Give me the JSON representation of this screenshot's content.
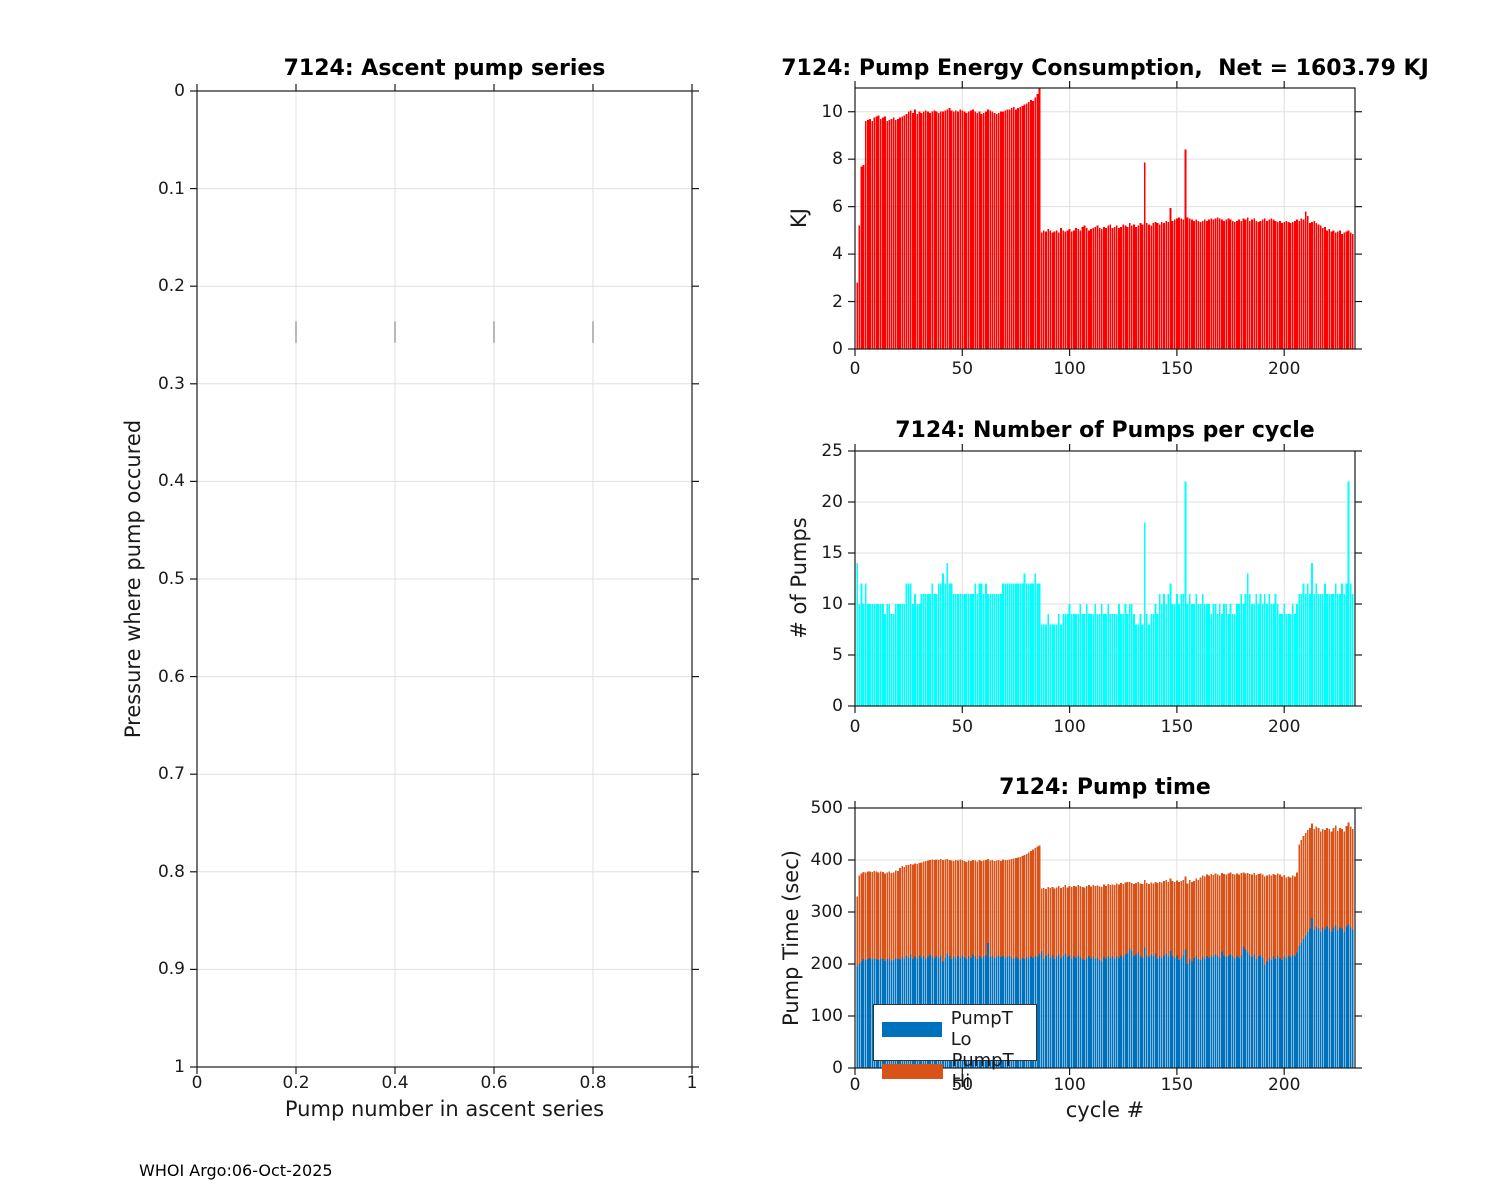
{
  "page": {
    "footer": "WHOI Argo:06-Oct-2025"
  },
  "colors": {
    "energy_bar": "#ff0000",
    "pumps_bar": "#00ffff",
    "pump_lo": "#0072bd",
    "pump_hi": "#d95319",
    "grid": "#e0e0e0",
    "axis": "#1a1a1a"
  },
  "chart_data": [
    {
      "key": "ascent",
      "type": "bar",
      "title": "7124: Ascent pump series",
      "xlabel": "Pump number in ascent series",
      "ylabel": "Pressure where pump occured",
      "xlim": [
        0,
        1
      ],
      "ylim": [
        0,
        1
      ],
      "y_reversed": true,
      "grid": true,
      "xticks": [
        "0",
        "0.2",
        "0.4",
        "0.6",
        "0.8",
        "1"
      ],
      "yticks": [
        "0",
        "0.1",
        "0.2",
        "0.3",
        "0.4",
        "0.5",
        "0.6",
        "0.7",
        "0.8",
        "0.9",
        "1"
      ],
      "bar_color": "#ff0000",
      "values": [],
      "note": "axes are empty - no data plotted"
    },
    {
      "key": "energy",
      "type": "bar",
      "title": "7124: Pump Energy Consumption,  Net = 1603.79 KJ",
      "xlabel": "",
      "ylabel": "KJ",
      "xlim": [
        0,
        233
      ],
      "ylim": [
        0,
        11
      ],
      "grid": true,
      "xticks": [
        "0",
        "50",
        "100",
        "150",
        "200"
      ],
      "yticks": [
        "0",
        "2",
        "4",
        "6",
        "8",
        "10"
      ],
      "bar_color": "#ff0000",
      "values": [
        2.8,
        5.2,
        7.7,
        7.75,
        9.6,
        9.65,
        9.7,
        9.6,
        9.75,
        9.8,
        9.85,
        9.7,
        9.75,
        9.8,
        9.6,
        9.65,
        9.7,
        9.75,
        9.65,
        9.7,
        9.75,
        9.8,
        9.85,
        9.9,
        10,
        10.05,
        9.95,
        10.1,
        9.9,
        10,
        9.95,
        10,
        10.05,
        10,
        9.95,
        10,
        10.05,
        10,
        9.95,
        10,
        10,
        10.05,
        10.1,
        10.15,
        10.05,
        10,
        10.05,
        10,
        10.1,
        10.05,
        10,
        9.95,
        10,
        10.05,
        10.1,
        10,
        9.95,
        10,
        9.9,
        9.95,
        10,
        10.1,
        10.05,
        10,
        9.95,
        9.9,
        9.95,
        10,
        10,
        10.05,
        10.1,
        10.1,
        10.15,
        10.2,
        10.1,
        10.15,
        10.2,
        10.25,
        10.3,
        10.35,
        10.4,
        10.5,
        10.45,
        10.6,
        10.75,
        11,
        4.9,
        5,
        4.95,
        5.05,
        5,
        4.9,
        4.95,
        5,
        4.9,
        5.1,
        5,
        4.95,
        5,
        5.05,
        4.95,
        5,
        5.1,
        5.05,
        5,
        5.15,
        5.2,
        5.1,
        5,
        5.05,
        5.1,
        5.15,
        5.2,
        5.1,
        5.05,
        5.15,
        5.1,
        5.2,
        5.25,
        5.1,
        5.15,
        5.2,
        5.1,
        5.15,
        5.25,
        5.2,
        5.15,
        5.3,
        5.2,
        5.25,
        5.15,
        5.2,
        5.3,
        5.25,
        7.85,
        5.3,
        5.25,
        5.2,
        5.3,
        5.35,
        5.3,
        5.25,
        5.35,
        5.3,
        5.4,
        5.35,
        5.95,
        5.4,
        5.45,
        5.5,
        5.55,
        5.5,
        5.45,
        8.4,
        5.55,
        5.5,
        5.45,
        5.4,
        5.45,
        5.4,
        5.35,
        5.4,
        5.45,
        5.4,
        5.45,
        5.5,
        5.45,
        5.5,
        5.55,
        5.5,
        5.45,
        5.4,
        5.45,
        5.5,
        5.45,
        5.4,
        5.35,
        5.4,
        5.45,
        5.4,
        5.5,
        5.45,
        5.55,
        5.4,
        5.45,
        5.5,
        5.4,
        5.35,
        5.4,
        5.45,
        5.5,
        5.4,
        5.45,
        5.5,
        5.45,
        5.4,
        5.35,
        5.4,
        5.3,
        5.35,
        5.4,
        5.35,
        5.3,
        5.35,
        5.4,
        5.45,
        5.4,
        5.5,
        5.45,
        5.8,
        5.6,
        5.3,
        5.35,
        5.4,
        5.3,
        5.25,
        5.2,
        5.1,
        5.15,
        5,
        5.05,
        4.95,
        5,
        4.9,
        4.95,
        5,
        4.85,
        4.9,
        4.95,
        5,
        4.9,
        4.85
      ]
    },
    {
      "key": "pumps",
      "type": "bar",
      "title": "7124: Number of Pumps per cycle",
      "xlabel": "",
      "ylabel": "# of Pumps",
      "xlim": [
        0,
        233
      ],
      "ylim": [
        0,
        25
      ],
      "grid": true,
      "xticks": [
        "0",
        "50",
        "100",
        "150",
        "200"
      ],
      "yticks": [
        "0",
        "5",
        "10",
        "15",
        "20",
        "25"
      ],
      "bar_color": "#00ffff",
      "values": [
        14,
        10,
        12,
        10,
        12,
        10,
        10,
        10,
        10,
        10,
        10,
        10,
        10,
        9,
        10,
        10,
        9,
        9,
        10,
        10,
        10,
        10,
        10,
        12,
        12,
        12,
        10,
        11,
        10,
        10,
        11,
        11,
        11,
        11,
        11,
        12,
        11,
        11,
        12,
        12,
        13,
        12,
        14,
        12,
        12,
        11,
        11,
        11,
        11,
        11,
        11,
        11,
        11,
        11,
        11,
        12,
        11,
        12,
        12,
        11,
        12,
        11,
        11,
        11,
        11,
        11,
        11,
        11,
        12,
        12,
        12,
        12,
        12,
        12,
        12,
        12,
        12,
        12,
        13,
        12,
        12,
        12,
        12,
        13,
        12,
        12,
        8,
        8,
        8,
        9,
        8,
        8,
        8,
        8,
        9,
        8,
        9,
        9,
        9,
        10,
        9,
        9,
        9,
        9,
        10,
        9,
        9,
        10,
        9,
        9,
        9,
        10,
        9,
        9,
        10,
        9,
        9,
        10,
        9,
        9,
        9,
        9,
        10,
        9,
        9,
        10,
        9,
        10,
        10,
        9,
        8,
        8,
        9,
        8,
        18,
        9,
        8,
        9,
        9,
        10,
        9,
        11,
        10,
        11,
        10,
        11,
        12,
        10,
        10,
        11,
        10,
        11,
        11,
        22,
        10,
        11,
        10,
        10,
        11,
        10,
        10,
        11,
        10,
        10,
        10,
        9,
        10,
        10,
        9,
        10,
        9,
        10,
        10,
        9,
        10,
        9,
        9,
        10,
        10,
        11,
        10,
        11,
        13,
        11,
        10,
        10,
        11,
        10,
        11,
        10,
        11,
        10,
        11,
        10,
        10,
        11,
        10,
        9,
        9,
        10,
        9,
        9,
        9,
        10,
        9,
        10,
        11,
        11,
        12,
        11,
        12,
        11,
        14,
        11,
        12,
        11,
        11,
        11,
        12,
        11,
        11,
        11,
        11,
        12,
        11,
        11,
        12,
        11,
        12,
        22,
        12,
        11
      ]
    },
    {
      "key": "pumptime",
      "type": "stacked-bar",
      "title": "7124: Pump time",
      "xlabel": "cycle #",
      "ylabel": "Pump Time (sec)",
      "xlim": [
        0,
        233
      ],
      "ylim": [
        0,
        500
      ],
      "grid": true,
      "xticks": [
        "0",
        "50",
        "100",
        "150",
        "200"
      ],
      "yticks": [
        "0",
        "100",
        "200",
        "300",
        "400",
        "500"
      ],
      "legend_position": "bottom-left",
      "series": [
        {
          "name": "PumpT Lo",
          "color": "#0072bd",
          "values": [
            195,
            200,
            205,
            210,
            208,
            210,
            212,
            209,
            211,
            210,
            208,
            212,
            210,
            206,
            210,
            211,
            207,
            208,
            212,
            210,
            209,
            213,
            210,
            215,
            212,
            218,
            210,
            214,
            211,
            216,
            212,
            215,
            210,
            213,
            217,
            214,
            211,
            215,
            212,
            216,
            205,
            212,
            220,
            215,
            210,
            214,
            211,
            215,
            212,
            216,
            213,
            210,
            215,
            212,
            218,
            214,
            210,
            215,
            211,
            214,
            216,
            240,
            213,
            215,
            212,
            214,
            216,
            213,
            215,
            212,
            214,
            215,
            212,
            210,
            213,
            211,
            208,
            212,
            210,
            213,
            211,
            214,
            212,
            215,
            213,
            218,
            225,
            210,
            215,
            220,
            212,
            216,
            210,
            214,
            218,
            212,
            215,
            220,
            213,
            216,
            210,
            214,
            212,
            216,
            213,
            210,
            208,
            212,
            215,
            211,
            214,
            210,
            212,
            208,
            205,
            213,
            210,
            215,
            212,
            214,
            210,
            215,
            212,
            216,
            213,
            218,
            220,
            230,
            225,
            215,
            218,
            222,
            215,
            212,
            232,
            216,
            213,
            218,
            215,
            220,
            210,
            215,
            212,
            216,
            220,
            213,
            225,
            215,
            212,
            216,
            208,
            212,
            216,
            228,
            200,
            210,
            205,
            212,
            215,
            210,
            208,
            214,
            210,
            215,
            212,
            216,
            213,
            218,
            215,
            212,
            224,
            216,
            213,
            215,
            218,
            214,
            211,
            215,
            212,
            216,
            233,
            228,
            222,
            216,
            213,
            218,
            210,
            214,
            216,
            212,
            198,
            205,
            212,
            208,
            214,
            210,
            216,
            212,
            208,
            215,
            212,
            216,
            213,
            218,
            215,
            222,
            235,
            240,
            248,
            255,
            262,
            268,
            288,
            265,
            272,
            268,
            262,
            270,
            266,
            272,
            268,
            262,
            270,
            275,
            264,
            270,
            268,
            262,
            272,
            276,
            270,
            266
          ]
        },
        {
          "name": "PumpT Hi",
          "color": "#d95319",
          "values": [
            135,
            170,
            169,
            167,
            168,
            168,
            166,
            168,
            168,
            168,
            168,
            166,
            167,
            168,
            166,
            167,
            168,
            168,
            168,
            169,
            176,
            175,
            177,
            175,
            178,
            174,
            181,
            179,
            181,
            178,
            183,
            182,
            188,
            186,
            183,
            187,
            189,
            186,
            188,
            186,
            195,
            189,
            182,
            185,
            189,
            184,
            189,
            184,
            189,
            184,
            185,
            186,
            184,
            186,
            182,
            185,
            187,
            185,
            187,
            185,
            184,
            162,
            186,
            185,
            186,
            185,
            184,
            185,
            186,
            188,
            186,
            186,
            190,
            193,
            191,
            194,
            198,
            196,
            200,
            199,
            203,
            203,
            208,
            208,
            213,
            210,
            120,
            136,
            129,
            128,
            134,
            132,
            135,
            133,
            132,
            134,
            133,
            132,
            134,
            134,
            138,
            136,
            137,
            136,
            137,
            138,
            139,
            138,
            137,
            138,
            138,
            140,
            139,
            141,
            143,
            140,
            140,
            139,
            140,
            139,
            142,
            140,
            141,
            140,
            141,
            139,
            138,
            128,
            131,
            139,
            138,
            136,
            140,
            142,
            130,
            140,
            141,
            139,
            140,
            138,
            146,
            143,
            145,
            144,
            142,
            145,
            139,
            145,
            146,
            145,
            150,
            148,
            146,
            140,
            155,
            152,
            153,
            148,
            149,
            152,
            158,
            156,
            158,
            157,
            158,
            157,
            158,
            156,
            157,
            158,
            151,
            157,
            159,
            159,
            158,
            159,
            161,
            159,
            160,
            159,
            143,
            146,
            153,
            157,
            159,
            157,
            161,
            159,
            158,
            160,
            170,
            165,
            160,
            162,
            159,
            161,
            158,
            160,
            160,
            156,
            154,
            152,
            153,
            152,
            153,
            154,
            195,
            198,
            198,
            197,
            196,
            194,
            182,
            195,
            192,
            194,
            193,
            190,
            192,
            190,
            192,
            193,
            192,
            191,
            192,
            192,
            192,
            193,
            193,
            196,
            194,
            194
          ]
        }
      ]
    }
  ]
}
